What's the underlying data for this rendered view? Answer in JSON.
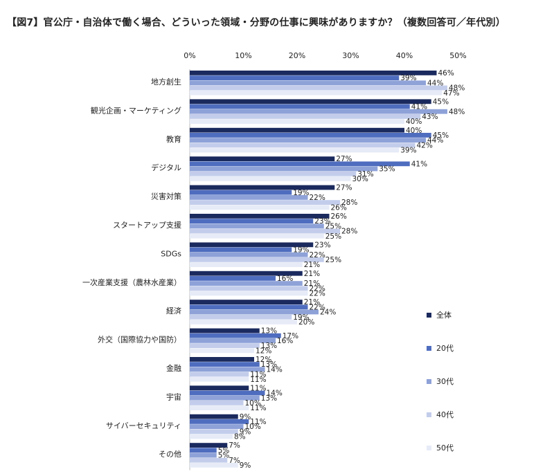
{
  "title": "【図7】官公庁・自治体で働く場合、どういった領域・分野の仕事に興味がありますか？（複数回答可／年代別）",
  "chart_data": {
    "type": "bar",
    "orientation": "horizontal",
    "title": "【図7】官公庁・自治体で働く場合、どういった領域・分野の仕事に興味がありますか？（複数回答可／年代別）",
    "xlim": [
      0,
      50
    ],
    "xticks": [
      "0%",
      "10%",
      "20%",
      "30%",
      "40%",
      "50%"
    ],
    "categories": [
      "地方創生",
      "観光企画・マーケティング",
      "教育",
      "デジタル",
      "災害対策",
      "スタートアップ支援",
      "SDGs",
      "一次産業支援（農林水産業）",
      "経済",
      "外交（国際協力や国防）",
      "金融",
      "宇宙",
      "サイバーセキュリティ",
      "その他"
    ],
    "series": [
      {
        "name": "全体",
        "color": "#1b2a5e",
        "values": [
          46,
          45,
          40,
          27,
          27,
          26,
          23,
          21,
          21,
          13,
          12,
          11,
          9,
          7
        ]
      },
      {
        "name": "20代",
        "color": "#4f6dbf",
        "values": [
          39,
          41,
          45,
          41,
          19,
          23,
          19,
          16,
          22,
          17,
          13,
          14,
          11,
          5
        ]
      },
      {
        "name": "30代",
        "color": "#8ea2d8",
        "values": [
          44,
          48,
          44,
          35,
          22,
          25,
          22,
          21,
          24,
          16,
          14,
          13,
          10,
          5
        ]
      },
      {
        "name": "40代",
        "color": "#c3cdeb",
        "values": [
          48,
          43,
          42,
          31,
          28,
          28,
          25,
          22,
          19,
          13,
          11,
          10,
          9,
          7
        ]
      },
      {
        "name": "50代",
        "color": "#e6ebf7",
        "values": [
          47,
          40,
          39,
          30,
          26,
          25,
          21,
          22,
          20,
          12,
          11,
          11,
          8,
          9
        ]
      }
    ],
    "legend_position": "right",
    "grid": false
  }
}
